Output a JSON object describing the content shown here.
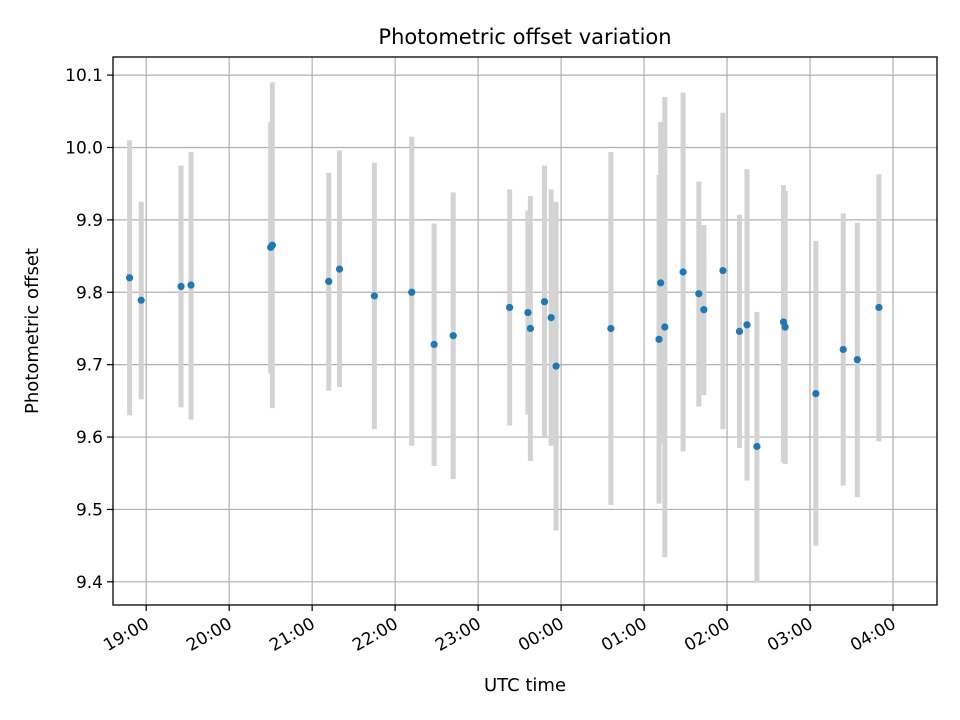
{
  "chart_data": {
    "type": "scatter",
    "title": "Photometric offset variation",
    "xlabel": "UTC time",
    "ylabel": "Photometric offset",
    "x_axis_kind": "time",
    "x_range_hours": [
      18.6,
      28.53
    ],
    "x_ticks_hours": [
      19,
      20,
      21,
      22,
      23,
      24,
      25,
      26,
      27,
      28
    ],
    "x_tick_labels": [
      "19:00",
      "20:00",
      "21:00",
      "22:00",
      "23:00",
      "00:00",
      "01:00",
      "02:00",
      "03:00",
      "04:00"
    ],
    "ylim": [
      9.368,
      10.125
    ],
    "y_ticks": [
      9.4,
      9.5,
      9.6,
      9.7,
      9.8,
      9.9,
      10.0,
      10.1
    ],
    "y_tick_labels": [
      "9.4",
      "9.5",
      "9.6",
      "9.7",
      "9.8",
      "9.9",
      "10.0",
      "10.1"
    ],
    "grid": true,
    "colors": {
      "marker": "#1f77b4",
      "errorbar": "#d3d3d3",
      "grid": "#b0b0b0"
    },
    "points": [
      {
        "t": 18.8,
        "y": 9.82,
        "lo": 9.63,
        "hi": 10.01
      },
      {
        "t": 18.94,
        "y": 9.789,
        "lo": 9.652,
        "hi": 9.925
      },
      {
        "t": 19.42,
        "y": 9.808,
        "lo": 9.641,
        "hi": 9.975
      },
      {
        "t": 19.54,
        "y": 9.81,
        "lo": 9.624,
        "hi": 9.994
      },
      {
        "t": 20.5,
        "y": 9.862,
        "lo": 9.688,
        "hi": 10.035
      },
      {
        "t": 20.52,
        "y": 9.865,
        "lo": 9.64,
        "hi": 10.09
      },
      {
        "t": 21.2,
        "y": 9.815,
        "lo": 9.664,
        "hi": 9.965
      },
      {
        "t": 21.33,
        "y": 9.832,
        "lo": 9.669,
        "hi": 9.996
      },
      {
        "t": 21.75,
        "y": 9.795,
        "lo": 9.611,
        "hi": 9.979
      },
      {
        "t": 22.2,
        "y": 9.8,
        "lo": 9.588,
        "hi": 10.015
      },
      {
        "t": 22.47,
        "y": 9.728,
        "lo": 9.56,
        "hi": 9.895
      },
      {
        "t": 22.7,
        "y": 9.74,
        "lo": 9.542,
        "hi": 9.938
      },
      {
        "t": 23.38,
        "y": 9.779,
        "lo": 9.616,
        "hi": 9.942
      },
      {
        "t": 23.6,
        "y": 9.772,
        "lo": 9.631,
        "hi": 9.913
      },
      {
        "t": 23.63,
        "y": 9.75,
        "lo": 9.567,
        "hi": 9.933
      },
      {
        "t": 23.8,
        "y": 9.787,
        "lo": 9.6,
        "hi": 9.975
      },
      {
        "t": 23.88,
        "y": 9.765,
        "lo": 9.588,
        "hi": 9.942
      },
      {
        "t": 23.94,
        "y": 9.698,
        "lo": 9.471,
        "hi": 9.925
      },
      {
        "t": 24.6,
        "y": 9.75,
        "lo": 9.506,
        "hi": 9.994
      },
      {
        "t": 25.18,
        "y": 9.735,
        "lo": 9.508,
        "hi": 9.962
      },
      {
        "t": 25.2,
        "y": 9.813,
        "lo": 9.59,
        "hi": 10.035
      },
      {
        "t": 25.25,
        "y": 9.752,
        "lo": 9.434,
        "hi": 10.07
      },
      {
        "t": 25.47,
        "y": 9.828,
        "lo": 9.58,
        "hi": 10.076
      },
      {
        "t": 25.66,
        "y": 9.798,
        "lo": 9.642,
        "hi": 9.953
      },
      {
        "t": 25.72,
        "y": 9.776,
        "lo": 9.658,
        "hi": 9.893
      },
      {
        "t": 25.95,
        "y": 9.83,
        "lo": 9.611,
        "hi": 10.048
      },
      {
        "t": 26.15,
        "y": 9.746,
        "lo": 9.585,
        "hi": 9.907
      },
      {
        "t": 26.24,
        "y": 9.755,
        "lo": 9.54,
        "hi": 9.97
      },
      {
        "t": 26.36,
        "y": 9.587,
        "lo": 9.4,
        "hi": 9.773
      },
      {
        "t": 26.68,
        "y": 9.759,
        "lo": 9.565,
        "hi": 9.948
      },
      {
        "t": 26.7,
        "y": 9.752,
        "lo": 9.563,
        "hi": 9.94
      },
      {
        "t": 27.07,
        "y": 9.66,
        "lo": 9.45,
        "hi": 9.871
      },
      {
        "t": 27.4,
        "y": 9.721,
        "lo": 9.533,
        "hi": 9.909
      },
      {
        "t": 27.57,
        "y": 9.707,
        "lo": 9.517,
        "hi": 9.896
      },
      {
        "t": 27.83,
        "y": 9.779,
        "lo": 9.594,
        "hi": 9.963
      }
    ]
  }
}
